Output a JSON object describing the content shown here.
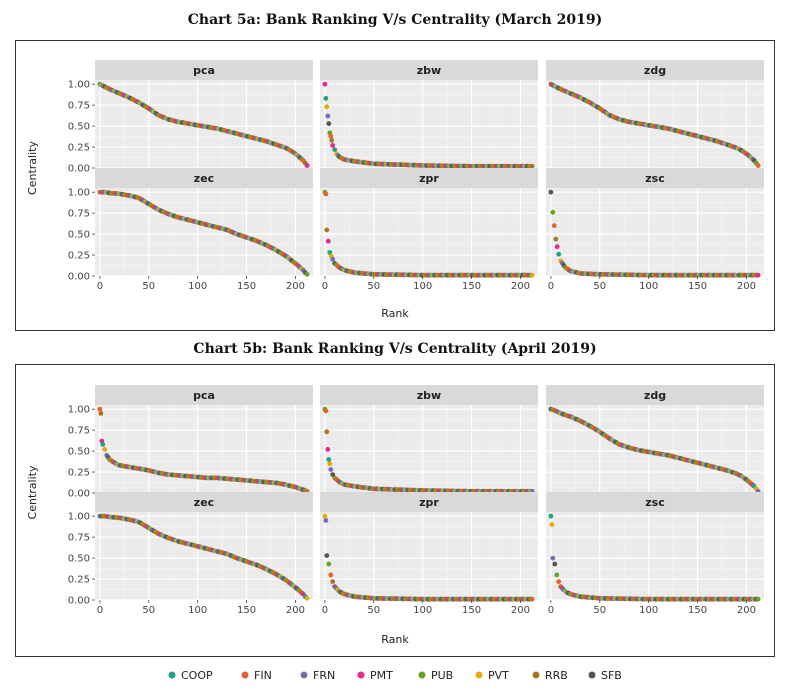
{
  "figure": {
    "legend_label": "",
    "palette": {
      "COOP": "#1fa187",
      "FIN": "#e8602c",
      "FRN": "#7570b3",
      "PMT": "#e7298a",
      "PUB": "#66a61e",
      "PVT": "#e6ab02",
      "RRB": "#a6761d",
      "SFB": "#555555"
    },
    "panel_bg": "#ebebeb",
    "strip_bg": "#d9d9d9"
  },
  "chart_data": [
    {
      "type": "scatter",
      "title": "Chart 5a: Bank Ranking V/s Centrality (March 2019)",
      "xlabel": "Rank",
      "ylabel": "Centrality",
      "xlim": [
        -5,
        218
      ],
      "ylim": [
        0,
        1.05
      ],
      "xticks": [
        "0",
        "50",
        "100",
        "150",
        "200"
      ],
      "yticks": [
        "0.00",
        "0.25",
        "0.50",
        "0.75",
        "1.00"
      ],
      "series": [
        "COOP",
        "FIN",
        "FRN",
        "PMT",
        "PUB",
        "PVT",
        "RRB",
        "SFB"
      ],
      "facets": [
        {
          "name": "pca",
          "x": [
            0,
            5,
            10,
            20,
            30,
            40,
            50,
            60,
            70,
            80,
            90,
            100,
            110,
            120,
            130,
            140,
            150,
            160,
            170,
            180,
            190,
            195,
            200,
            205,
            208,
            210,
            212
          ],
          "y": [
            1.0,
            0.97,
            0.94,
            0.89,
            0.84,
            0.78,
            0.71,
            0.63,
            0.58,
            0.55,
            0.53,
            0.51,
            0.49,
            0.47,
            0.44,
            0.41,
            0.38,
            0.35,
            0.32,
            0.28,
            0.24,
            0.21,
            0.17,
            0.12,
            0.09,
            0.06,
            0.03
          ]
        },
        {
          "name": "zbw",
          "x": [
            0,
            1,
            2,
            3,
            4,
            5,
            6,
            7,
            8,
            10,
            12,
            15,
            20,
            30,
            50,
            100,
            150,
            200,
            212
          ],
          "y": [
            1.0,
            0.83,
            0.73,
            0.62,
            0.53,
            0.42,
            0.38,
            0.33,
            0.27,
            0.22,
            0.17,
            0.13,
            0.1,
            0.08,
            0.05,
            0.03,
            0.02,
            0.02,
            0.02
          ]
        },
        {
          "name": "zdg",
          "x": [
            0,
            5,
            10,
            20,
            30,
            40,
            50,
            60,
            70,
            80,
            90,
            100,
            110,
            120,
            130,
            140,
            150,
            160,
            170,
            180,
            190,
            195,
            200,
            205,
            208,
            210,
            212
          ],
          "y": [
            1.0,
            0.97,
            0.94,
            0.89,
            0.84,
            0.78,
            0.71,
            0.63,
            0.58,
            0.55,
            0.53,
            0.51,
            0.49,
            0.47,
            0.44,
            0.41,
            0.38,
            0.35,
            0.32,
            0.28,
            0.24,
            0.21,
            0.17,
            0.12,
            0.09,
            0.06,
            0.03
          ]
        },
        {
          "name": "zec",
          "x": [
            0,
            5,
            10,
            20,
            30,
            40,
            50,
            60,
            70,
            80,
            90,
            100,
            110,
            120,
            130,
            140,
            150,
            160,
            170,
            180,
            190,
            200,
            205,
            208,
            210,
            212
          ],
          "y": [
            1.0,
            1.0,
            0.99,
            0.98,
            0.96,
            0.93,
            0.86,
            0.79,
            0.74,
            0.7,
            0.67,
            0.64,
            0.61,
            0.58,
            0.55,
            0.5,
            0.46,
            0.42,
            0.37,
            0.31,
            0.24,
            0.15,
            0.1,
            0.07,
            0.04,
            0.02
          ]
        },
        {
          "name": "zpr",
          "x": [
            0,
            1,
            2,
            5,
            8,
            10,
            15,
            20,
            30,
            50,
            100,
            150,
            200,
            212
          ],
          "y": [
            1.0,
            0.98,
            0.55,
            0.28,
            0.2,
            0.15,
            0.1,
            0.07,
            0.04,
            0.02,
            0.01,
            0.01,
            0.01,
            0.01
          ]
        },
        {
          "name": "zsc",
          "x": [
            0,
            2,
            5,
            8,
            10,
            15,
            20,
            30,
            50,
            100,
            150,
            200,
            212
          ],
          "y": [
            1.0,
            0.76,
            0.44,
            0.26,
            0.18,
            0.1,
            0.06,
            0.03,
            0.02,
            0.01,
            0.01,
            0.01,
            0.01
          ]
        }
      ]
    },
    {
      "type": "scatter",
      "title": "Chart 5b: Bank Ranking V/s Centrality (April 2019)",
      "xlabel": "Rank",
      "ylabel": "Centrality",
      "xlim": [
        -5,
        218
      ],
      "ylim": [
        0,
        1.05
      ],
      "xticks": [
        "0",
        "50",
        "100",
        "150",
        "200"
      ],
      "yticks": [
        "0.00",
        "0.25",
        "0.50",
        "0.75",
        "1.00"
      ],
      "series": [
        "COOP",
        "FIN",
        "FRN",
        "PMT",
        "PUB",
        "PVT",
        "RRB",
        "SFB"
      ],
      "facets": [
        {
          "name": "pca",
          "x": [
            0,
            1,
            2,
            3,
            5,
            7,
            10,
            15,
            20,
            30,
            40,
            50,
            60,
            70,
            80,
            90,
            100,
            110,
            120,
            130,
            140,
            150,
            160,
            170,
            180,
            190,
            200,
            205,
            210,
            212
          ],
          "y": [
            1.0,
            0.95,
            0.62,
            0.58,
            0.52,
            0.45,
            0.4,
            0.36,
            0.33,
            0.31,
            0.29,
            0.27,
            0.24,
            0.22,
            0.21,
            0.2,
            0.19,
            0.18,
            0.18,
            0.17,
            0.16,
            0.15,
            0.14,
            0.13,
            0.12,
            0.1,
            0.07,
            0.05,
            0.03,
            0.02
          ]
        },
        {
          "name": "zbw",
          "x": [
            0,
            1,
            2,
            3,
            4,
            5,
            6,
            8,
            10,
            15,
            20,
            30,
            50,
            100,
            150,
            200,
            212
          ],
          "y": [
            1.0,
            0.98,
            0.73,
            0.52,
            0.4,
            0.35,
            0.28,
            0.22,
            0.18,
            0.13,
            0.1,
            0.08,
            0.05,
            0.03,
            0.02,
            0.02,
            0.02
          ]
        },
        {
          "name": "zdg",
          "x": [
            0,
            5,
            10,
            20,
            30,
            40,
            50,
            60,
            70,
            80,
            90,
            100,
            110,
            120,
            130,
            140,
            150,
            160,
            170,
            180,
            190,
            195,
            200,
            205,
            208,
            210,
            212
          ],
          "y": [
            1.0,
            0.98,
            0.95,
            0.91,
            0.86,
            0.8,
            0.73,
            0.65,
            0.58,
            0.54,
            0.51,
            0.49,
            0.47,
            0.45,
            0.42,
            0.39,
            0.36,
            0.33,
            0.3,
            0.27,
            0.23,
            0.2,
            0.16,
            0.11,
            0.08,
            0.05,
            0.02
          ]
        },
        {
          "name": "zec",
          "x": [
            0,
            5,
            10,
            20,
            30,
            40,
            50,
            60,
            70,
            80,
            90,
            100,
            110,
            120,
            130,
            140,
            150,
            160,
            170,
            180,
            190,
            200,
            205,
            208,
            210,
            212
          ],
          "y": [
            1.0,
            1.0,
            0.99,
            0.98,
            0.96,
            0.93,
            0.86,
            0.79,
            0.74,
            0.7,
            0.67,
            0.64,
            0.61,
            0.58,
            0.55,
            0.5,
            0.46,
            0.42,
            0.37,
            0.31,
            0.24,
            0.15,
            0.1,
            0.07,
            0.04,
            0.02
          ]
        },
        {
          "name": "zpr",
          "x": [
            0,
            1,
            2,
            4,
            6,
            8,
            10,
            15,
            20,
            30,
            50,
            100,
            150,
            200,
            212
          ],
          "y": [
            1.0,
            0.95,
            0.53,
            0.43,
            0.3,
            0.22,
            0.16,
            0.1,
            0.07,
            0.04,
            0.02,
            0.01,
            0.01,
            0.01,
            0.01
          ]
        },
        {
          "name": "zsc",
          "x": [
            0,
            1,
            2,
            4,
            6,
            8,
            10,
            15,
            20,
            30,
            50,
            100,
            150,
            200,
            212
          ],
          "y": [
            1.0,
            0.9,
            0.5,
            0.43,
            0.3,
            0.22,
            0.16,
            0.1,
            0.07,
            0.04,
            0.02,
            0.01,
            0.01,
            0.01,
            0.01
          ]
        }
      ]
    }
  ]
}
